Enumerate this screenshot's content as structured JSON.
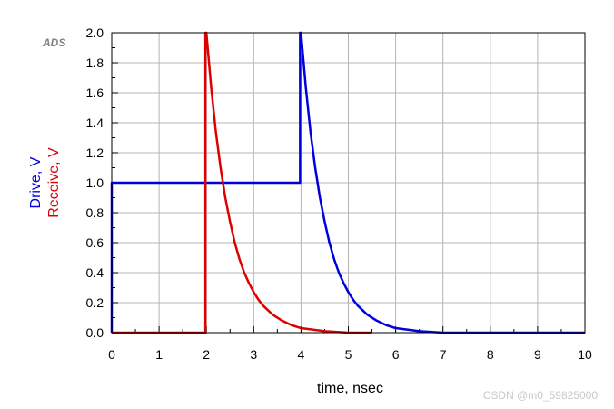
{
  "brand_label": "ADS",
  "watermark": "CSDN @m0_59825000",
  "chart_data": {
    "type": "line",
    "xlabel": "time, nsec",
    "ylabel_lines": [
      {
        "text": "Drive, V",
        "color": "#0000dd"
      },
      {
        "text": "Receive, V",
        "color": "#dd0000"
      }
    ],
    "xlim": [
      0,
      10
    ],
    "ylim": [
      0,
      2
    ],
    "x_ticks": [
      "0",
      "1",
      "2",
      "3",
      "4",
      "5",
      "6",
      "7",
      "8",
      "9",
      "10"
    ],
    "y_ticks": [
      "0.0",
      "0.2",
      "0.4",
      "0.6",
      "0.8",
      "1.0",
      "1.2",
      "1.4",
      "1.6",
      "1.8",
      "2.0"
    ],
    "grid": true,
    "series": [
      {
        "name": "Drive",
        "color": "#0000dd",
        "x": [
          0,
          0,
          3.98,
          3.98,
          4,
          4.1,
          4.2,
          4.3,
          4.4,
          4.5,
          4.6,
          4.7,
          4.8,
          4.9,
          5,
          5.1,
          5.2,
          5.4,
          5.6,
          5.8,
          6,
          6.5,
          7,
          8,
          9,
          10
        ],
        "y": [
          0,
          1,
          1,
          2,
          2,
          1.64,
          1.34,
          1.1,
          0.9,
          0.74,
          0.6,
          0.49,
          0.4,
          0.33,
          0.27,
          0.22,
          0.18,
          0.12,
          0.08,
          0.05,
          0.03,
          0.01,
          0.0,
          0.0,
          0.0,
          0.0
        ]
      },
      {
        "name": "Receive",
        "color": "#dd0000",
        "x": [
          0,
          1.98,
          1.98,
          2,
          2.1,
          2.2,
          2.3,
          2.4,
          2.5,
          2.6,
          2.7,
          2.8,
          2.9,
          3,
          3.1,
          3.2,
          3.4,
          3.6,
          3.8,
          4,
          4.5,
          5,
          5.5
        ],
        "y": [
          0,
          0,
          2,
          2,
          1.64,
          1.34,
          1.1,
          0.9,
          0.74,
          0.6,
          0.49,
          0.4,
          0.33,
          0.27,
          0.22,
          0.18,
          0.12,
          0.08,
          0.05,
          0.03,
          0.01,
          0.0,
          0.0
        ]
      }
    ]
  }
}
